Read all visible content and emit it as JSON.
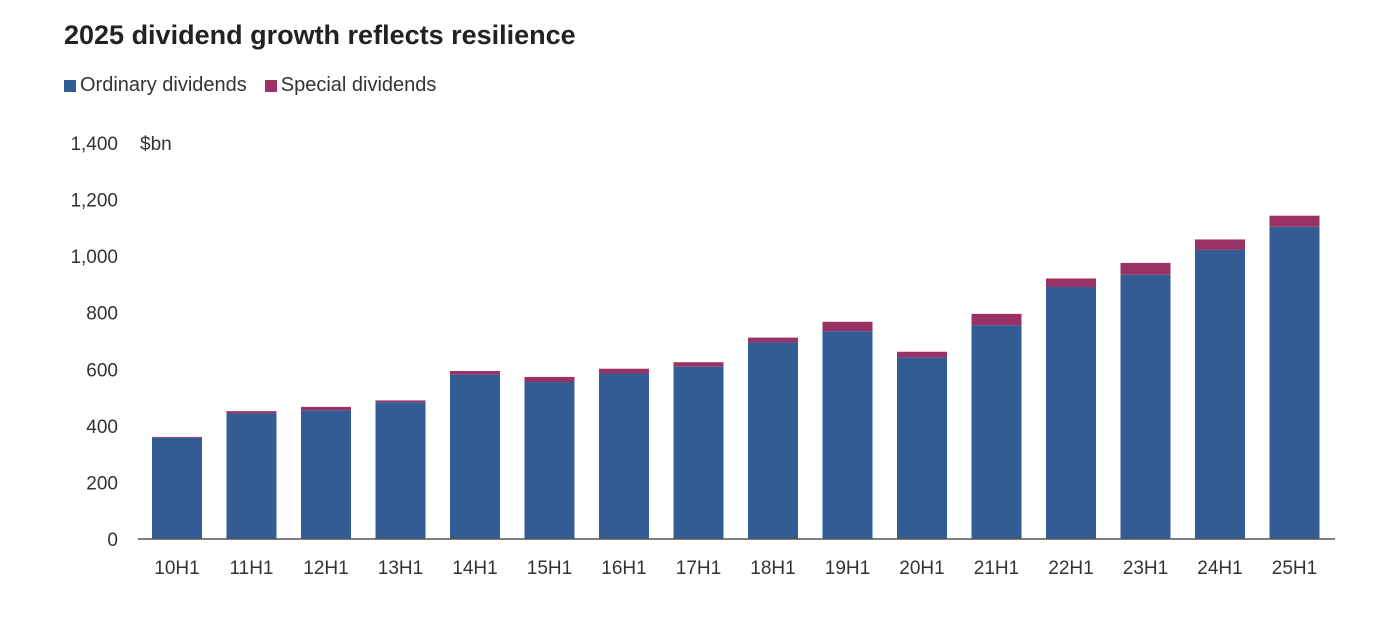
{
  "chart_data": {
    "type": "bar",
    "stacked": true,
    "title": "2025 dividend growth reflects resilience",
    "unit_label": "$bn",
    "xlabel": "",
    "ylabel": "$bn",
    "ylim": [
      0,
      1400
    ],
    "yticks": [
      0,
      200,
      400,
      600,
      800,
      1000,
      1200,
      1400
    ],
    "ytick_labels": [
      "0",
      "200",
      "400",
      "600",
      "800",
      "1,000",
      "1,200",
      "1,400"
    ],
    "grid": false,
    "legend_position": "top-left",
    "categories": [
      "10H1",
      "11H1",
      "12H1",
      "13H1",
      "14H1",
      "15H1",
      "16H1",
      "17H1",
      "18H1",
      "19H1",
      "20H1",
      "21H1",
      "22H1",
      "23H1",
      "24H1",
      "25H1"
    ],
    "series": [
      {
        "name": "Ordinary dividends",
        "color": "#335C94",
        "values": [
          358,
          444,
          455,
          484,
          581,
          555,
          585,
          609,
          695,
          735,
          642,
          756,
          891,
          934,
          1022,
          1104
        ]
      },
      {
        "name": "Special dividends",
        "color": "#993366",
        "values": [
          3,
          8,
          12,
          6,
          13,
          18,
          17,
          16,
          17,
          33,
          20,
          40,
          30,
          42,
          37,
          39
        ]
      }
    ]
  }
}
